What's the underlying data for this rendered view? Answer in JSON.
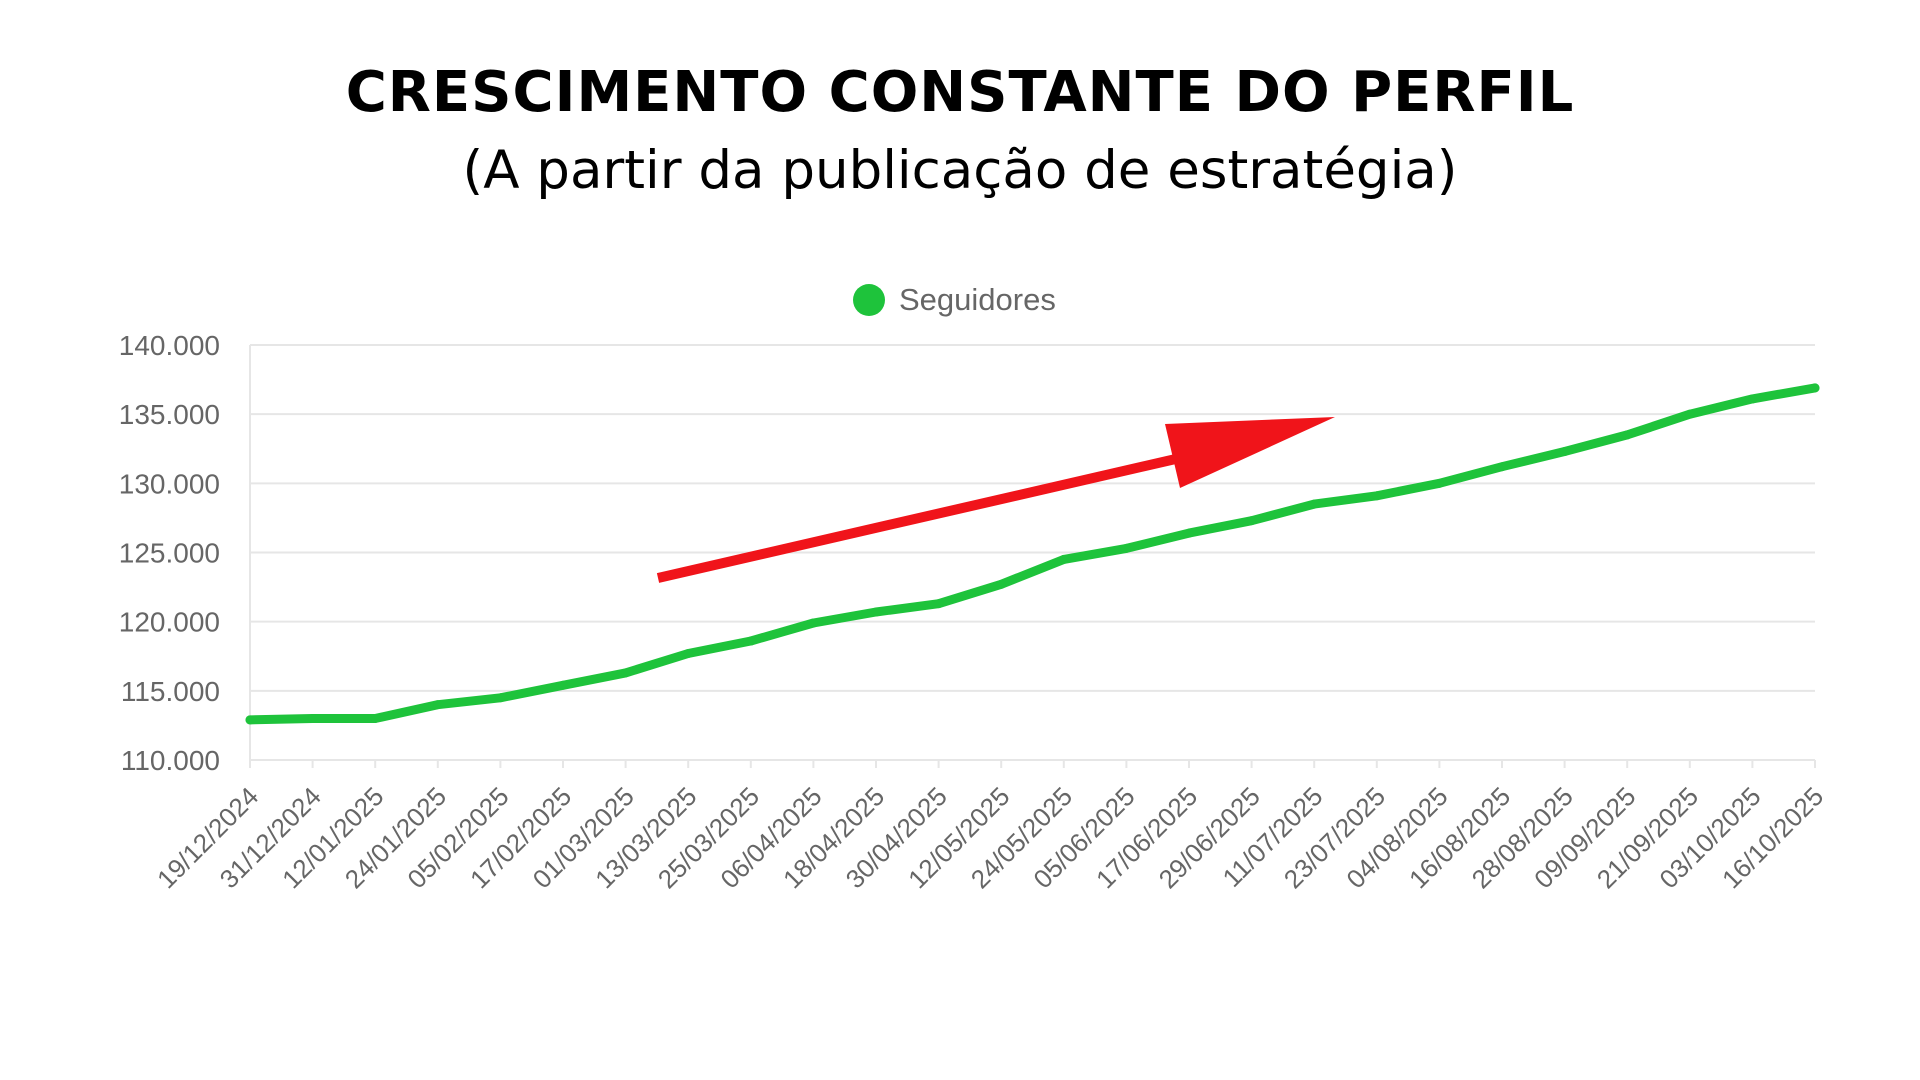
{
  "header": {
    "title": "CRESCIMENTO CONSTANTE DO PERFIL",
    "subtitle": "(A partir da publicação de estratégia)"
  },
  "colors": {
    "series": "#1ec33b",
    "arrow": "#f0141a",
    "grid": "#e6e6e6",
    "tick_text": "#666666"
  },
  "chart_data": {
    "type": "line",
    "title": "",
    "xlabel": "",
    "ylabel": "",
    "ylim": [
      110000,
      140000
    ],
    "yticks": [
      "140.000",
      "135.000",
      "130.000",
      "125.000",
      "120.000",
      "115.000",
      "110.000"
    ],
    "grid": true,
    "legend_position": "top-center",
    "categories": [
      "19/12/2024",
      "31/12/2024",
      "12/01/2025",
      "24/01/2025",
      "05/02/2025",
      "17/02/2025",
      "01/03/2025",
      "13/03/2025",
      "25/03/2025",
      "06/04/2025",
      "18/04/2025",
      "30/04/2025",
      "12/05/2025",
      "24/05/2025",
      "05/06/2025",
      "17/06/2025",
      "29/06/2025",
      "11/07/2025",
      "23/07/2025",
      "04/08/2025",
      "16/08/2025",
      "28/08/2025",
      "09/09/2025",
      "21/09/2025",
      "03/10/2025",
      "16/10/2025"
    ],
    "series": [
      {
        "name": "Seguidores",
        "values": [
          112900,
          113000,
          113000,
          114000,
          114500,
          115400,
          116300,
          117700,
          118600,
          119900,
          120700,
          121300,
          122700,
          124500,
          125300,
          126400,
          127300,
          128500,
          129100,
          130000,
          131200,
          132300,
          133500,
          135000,
          136100,
          136900
        ]
      }
    ],
    "annotations": [
      {
        "type": "arrow",
        "direction": "up-right"
      }
    ]
  }
}
